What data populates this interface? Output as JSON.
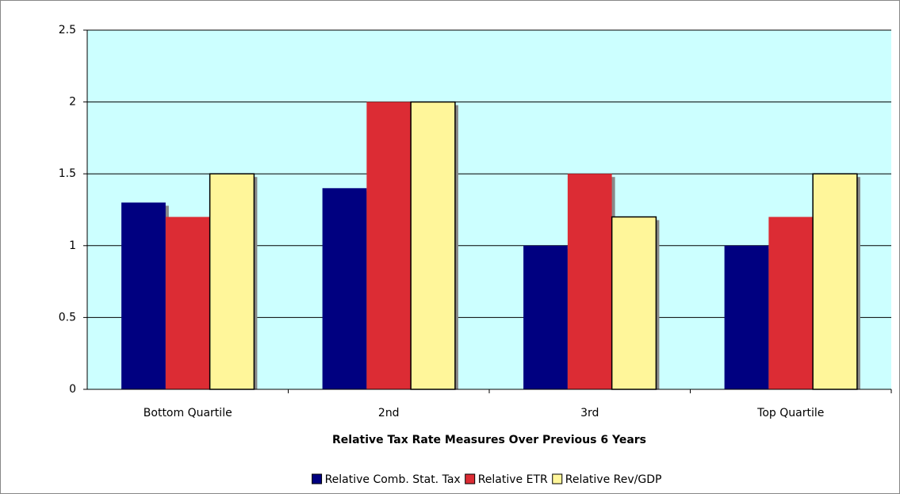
{
  "chart_data": {
    "type": "bar",
    "x_label": "Relative Tax Rate Measures Over Previous 6 Years",
    "categories": [
      "Bottom Quartile",
      "2nd",
      "3rd",
      "Top Quartile"
    ],
    "series": [
      {
        "name": "Relative Comb. Stat. Tax",
        "color": "#000080",
        "values": [
          1.3,
          1.4,
          1.0,
          1.0
        ]
      },
      {
        "name": "Relative ETR",
        "color": "#dc2c34",
        "values": [
          1.2,
          2.0,
          1.5,
          1.2
        ]
      },
      {
        "name": "Relative Rev/GDP",
        "color": "#fff69a",
        "values": [
          1.5,
          2.0,
          1.2,
          1.5
        ]
      }
    ],
    "ylim": [
      0,
      2.5
    ],
    "yticks": [
      0,
      0.5,
      1,
      1.5,
      2,
      2.5
    ],
    "grid": true,
    "plot_background": "#ccffff",
    "legend": "bottom"
  }
}
